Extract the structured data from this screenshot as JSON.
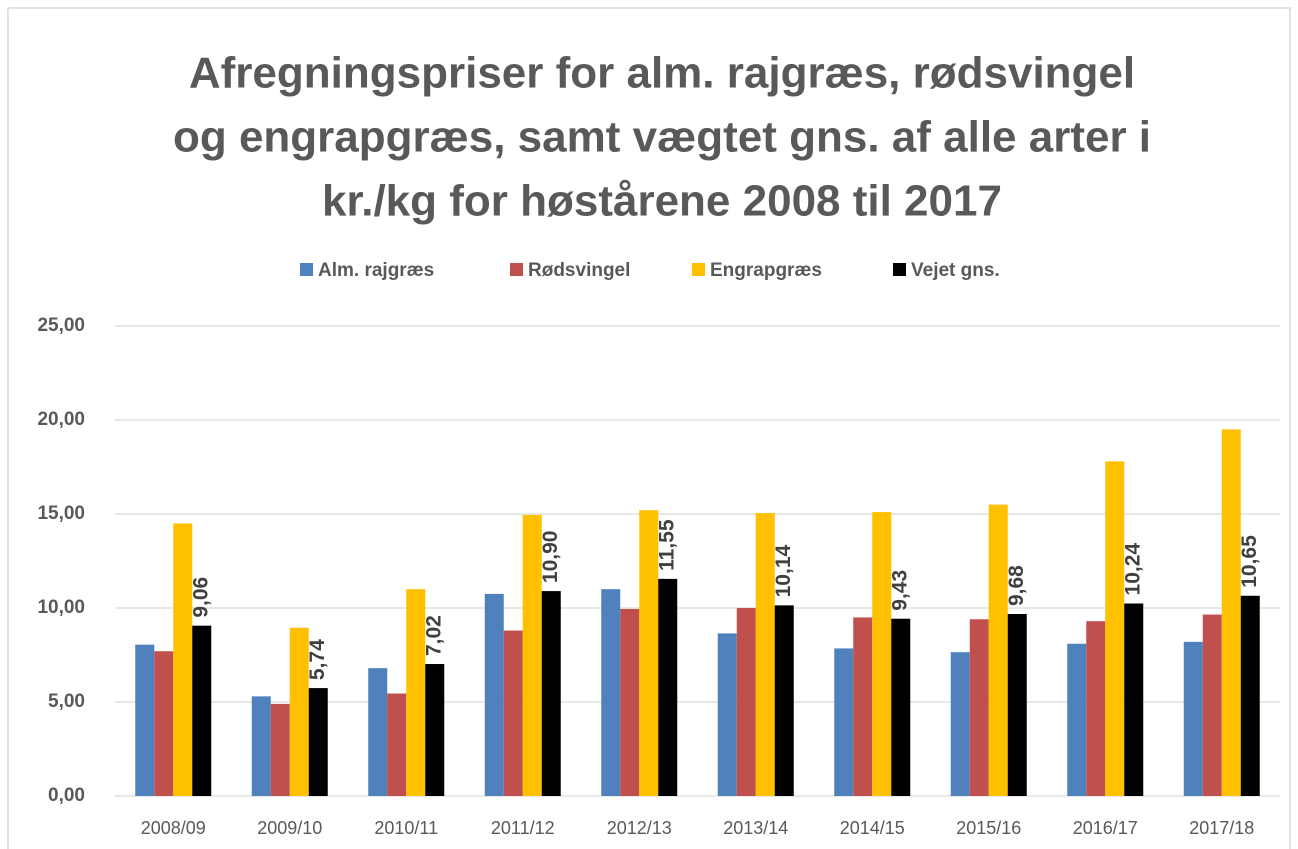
{
  "chart_data": {
    "type": "bar",
    "title": [
      "Afregningspriser for alm. rajgræs, rødsvingel",
      "og engrapgræs, samt vægtet gns. af alle arter i",
      "kr./kg for høstårene 2008 til 2017"
    ],
    "categories": [
      "2008/09",
      "2009/10",
      "2010/11",
      "2011/12",
      "2012/13",
      "2013/14",
      "2014/15",
      "2015/16",
      "2016/17",
      "2017/18"
    ],
    "series": [
      {
        "name": "Alm. rajgræs",
        "color": "#4f81bd",
        "values": [
          8.05,
          5.3,
          6.8,
          10.75,
          11.0,
          8.65,
          7.85,
          7.65,
          8.1,
          8.2
        ]
      },
      {
        "name": "Rødsvingel",
        "color": "#c0504d",
        "values": [
          7.7,
          4.9,
          5.45,
          8.8,
          9.95,
          10.0,
          9.5,
          9.4,
          9.3,
          9.65
        ]
      },
      {
        "name": "Engrapgræs",
        "color": "#ffc000",
        "values": [
          14.5,
          8.95,
          11.0,
          14.95,
          15.2,
          15.05,
          15.1,
          15.5,
          17.8,
          19.5
        ]
      },
      {
        "name": "Vejet gns.",
        "color": "#000000",
        "values": [
          9.06,
          5.74,
          7.02,
          10.9,
          11.55,
          10.14,
          9.43,
          9.68,
          10.24,
          10.65
        ],
        "value_labels": [
          "9,06",
          "5,74",
          "7,02",
          "10,90",
          "11,55",
          "10,14",
          "9,43",
          "9,68",
          "10,24",
          "10,65"
        ]
      }
    ],
    "ylim": [
      0,
      25
    ],
    "yticks": [
      {
        "value": 0,
        "label": "0,00"
      },
      {
        "value": 5,
        "label": "5,00"
      },
      {
        "value": 10,
        "label": "10,00"
      },
      {
        "value": 15,
        "label": "15,00"
      },
      {
        "value": 20,
        "label": "20,00"
      },
      {
        "value": 25,
        "label": "25,00"
      }
    ],
    "grid": true,
    "legend": "top"
  }
}
